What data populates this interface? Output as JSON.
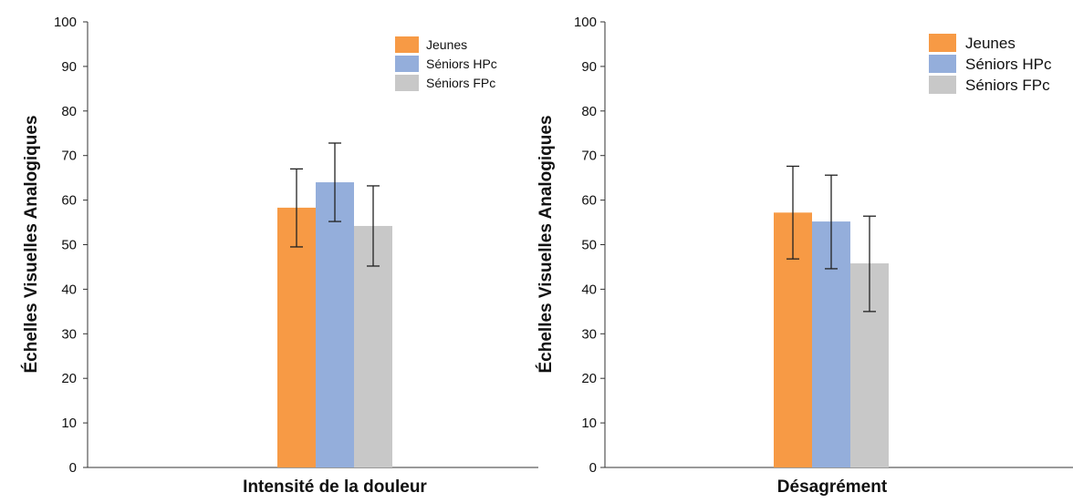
{
  "series_names": [
    "Jeunes",
    "Séniors HPc",
    "Séniors FPc"
  ],
  "colors": {
    "jeunes": "#F79A45",
    "hpc": "#94AEDB",
    "fpc": "#C8C8C8",
    "error_bar": "#222222"
  },
  "chart_data": [
    {
      "type": "bar",
      "title": "",
      "xlabel": "Intensité de la douleur",
      "ylabel": "Échelles Visuelles Analogiques",
      "ylim": [
        0,
        100
      ],
      "yticks": [
        "0",
        "10",
        "20",
        "30",
        "40",
        "50",
        "60",
        "70",
        "80",
        "90",
        "100"
      ],
      "grid": false,
      "legend_position": "top-right",
      "categories": [
        "Intensité de la douleur"
      ],
      "series": [
        {
          "name": "Jeunes",
          "values": [
            58.3
          ],
          "error_low": [
            49.5
          ],
          "error_high": [
            67.0
          ]
        },
        {
          "name": "Séniors HPc",
          "values": [
            64.0
          ],
          "error_low": [
            55.2
          ],
          "error_high": [
            72.8
          ]
        },
        {
          "name": "Séniors FPc",
          "values": [
            54.2
          ],
          "error_low": [
            45.2
          ],
          "error_high": [
            63.2
          ]
        }
      ]
    },
    {
      "type": "bar",
      "title": "",
      "xlabel": "Désagrément",
      "ylabel": "Échelles Visuelles Analogiques",
      "ylim": [
        0,
        100
      ],
      "yticks": [
        "0",
        "10",
        "20",
        "30",
        "40",
        "50",
        "60",
        "70",
        "80",
        "90",
        "100"
      ],
      "grid": false,
      "legend_position": "top-right",
      "categories": [
        "Désagrément"
      ],
      "series": [
        {
          "name": "Jeunes",
          "values": [
            57.2
          ],
          "error_low": [
            46.8
          ],
          "error_high": [
            67.6
          ]
        },
        {
          "name": "Séniors HPc",
          "values": [
            55.2
          ],
          "error_low": [
            44.6
          ],
          "error_high": [
            65.6
          ]
        },
        {
          "name": "Séniors FPc",
          "values": [
            45.8
          ],
          "error_low": [
            35.0
          ],
          "error_high": [
            56.4
          ]
        }
      ]
    }
  ]
}
